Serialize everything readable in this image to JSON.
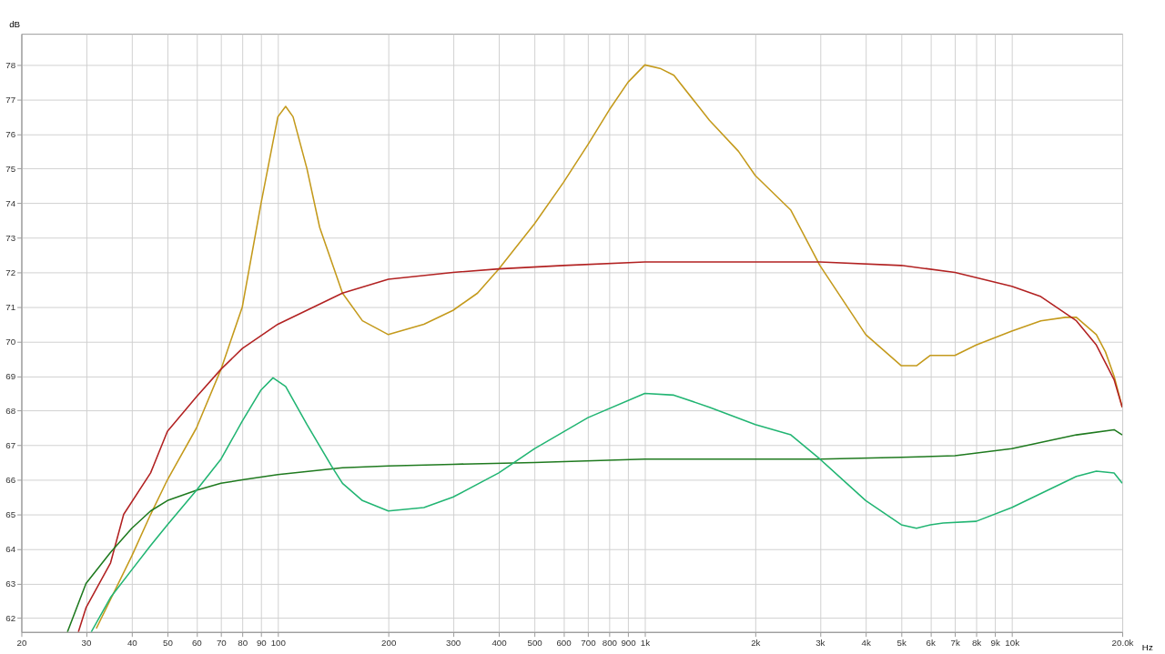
{
  "chart_data": {
    "type": "line",
    "xlabel": "Hz",
    "ylabel": "dB",
    "log": "x",
    "grid": true,
    "legend": false,
    "marker": "none",
    "line_style": "solid",
    "xlim": [
      20,
      20000
    ],
    "ylim": [
      61.6,
      78.9
    ],
    "xticks": [
      20,
      30,
      40,
      50,
      60,
      70,
      80,
      90,
      100,
      200,
      300,
      400,
      500,
      600,
      700,
      800,
      900,
      {
        "value": 1000,
        "label": "1k"
      },
      {
        "value": 2000,
        "label": "2k"
      },
      {
        "value": 3000,
        "label": "3k"
      },
      {
        "value": 4000,
        "label": "4k"
      },
      {
        "value": 5000,
        "label": "5k"
      },
      {
        "value": 6000,
        "label": "6k"
      },
      {
        "value": 7000,
        "label": "7k"
      },
      {
        "value": 8000,
        "label": "8k"
      },
      {
        "value": 9000,
        "label": "9k"
      },
      {
        "value": 10000,
        "label": "10k"
      },
      {
        "value": 20000,
        "label": "20.0k"
      }
    ],
    "yticks": [
      62,
      63,
      64,
      65,
      66,
      67,
      68,
      69,
      70,
      71,
      72,
      73,
      74,
      75,
      76,
      77,
      78
    ],
    "series": [
      {
        "color": "#c49a1c",
        "x": [
          32,
          40,
          45,
          50,
          60,
          70,
          80,
          90,
          100,
          105,
          110,
          120,
          130,
          150,
          170,
          200,
          250,
          300,
          350,
          400,
          500,
          600,
          700,
          800,
          900,
          1000,
          1100,
          1200,
          1500,
          1800,
          2000,
          2500,
          3000,
          4000,
          5000,
          5500,
          6000,
          6500,
          7000,
          8000,
          10000,
          12000,
          14000,
          15000,
          17000,
          18000,
          19000,
          20000
        ],
        "values": [
          61.7,
          63.8,
          65.0,
          66.0,
          67.5,
          69.2,
          71.0,
          74.0,
          76.5,
          76.8,
          76.5,
          75.0,
          73.3,
          71.4,
          70.6,
          70.2,
          70.5,
          70.9,
          71.4,
          72.1,
          73.4,
          74.6,
          75.7,
          76.7,
          77.5,
          78.0,
          77.9,
          77.7,
          76.4,
          75.5,
          74.8,
          73.8,
          72.2,
          70.2,
          69.3,
          69.3,
          69.6,
          69.6,
          69.6,
          69.9,
          70.3,
          70.6,
          70.7,
          70.7,
          70.2,
          69.7,
          69.0,
          68.1
        ]
      },
      {
        "color": "#b22222",
        "x": [
          28.6,
          30,
          35,
          38,
          45,
          50,
          60,
          70,
          80,
          100,
          150,
          200,
          300,
          400,
          600,
          1000,
          2000,
          3000,
          5000,
          7000,
          10000,
          12000,
          15000,
          17000,
          19000,
          20000
        ],
        "values": [
          61.6,
          62.3,
          63.6,
          65.0,
          66.2,
          67.4,
          68.4,
          69.2,
          69.8,
          70.5,
          71.4,
          71.8,
          72.0,
          72.1,
          72.2,
          72.3,
          72.3,
          72.3,
          72.2,
          72.0,
          71.6,
          71.3,
          70.6,
          69.9,
          68.9,
          68.1
        ]
      },
      {
        "color": "#1f7a1f",
        "x": [
          26.7,
          30,
          35,
          40,
          45,
          50,
          60,
          70,
          80,
          100,
          150,
          200,
          300,
          500,
          1000,
          2000,
          3000,
          5000,
          7000,
          10000,
          15000,
          19000,
          20000
        ],
        "values": [
          61.6,
          63.0,
          63.9,
          64.6,
          65.1,
          65.4,
          65.7,
          65.9,
          66.0,
          66.15,
          66.35,
          66.4,
          66.45,
          66.5,
          66.6,
          66.6,
          66.6,
          66.65,
          66.7,
          66.9,
          67.3,
          67.45,
          67.3
        ]
      },
      {
        "color": "#22b573",
        "x": [
          31,
          35,
          40,
          45,
          50,
          60,
          70,
          80,
          90,
          97,
          105,
          120,
          140,
          150,
          170,
          200,
          250,
          300,
          400,
          500,
          700,
          1000,
          1200,
          1500,
          2000,
          2500,
          3000,
          4000,
          5000,
          5500,
          6000,
          6500,
          8000,
          10000,
          15000,
          17000,
          19000,
          20000
        ],
        "values": [
          61.6,
          62.6,
          63.4,
          64.1,
          64.7,
          65.7,
          66.6,
          67.7,
          68.6,
          68.95,
          68.7,
          67.6,
          66.4,
          65.9,
          65.4,
          65.1,
          65.2,
          65.5,
          66.2,
          66.9,
          67.8,
          68.5,
          68.45,
          68.1,
          67.6,
          67.3,
          66.6,
          65.4,
          64.7,
          64.6,
          64.7,
          64.75,
          64.8,
          65.2,
          66.1,
          66.25,
          66.2,
          65.9
        ]
      }
    ]
  }
}
